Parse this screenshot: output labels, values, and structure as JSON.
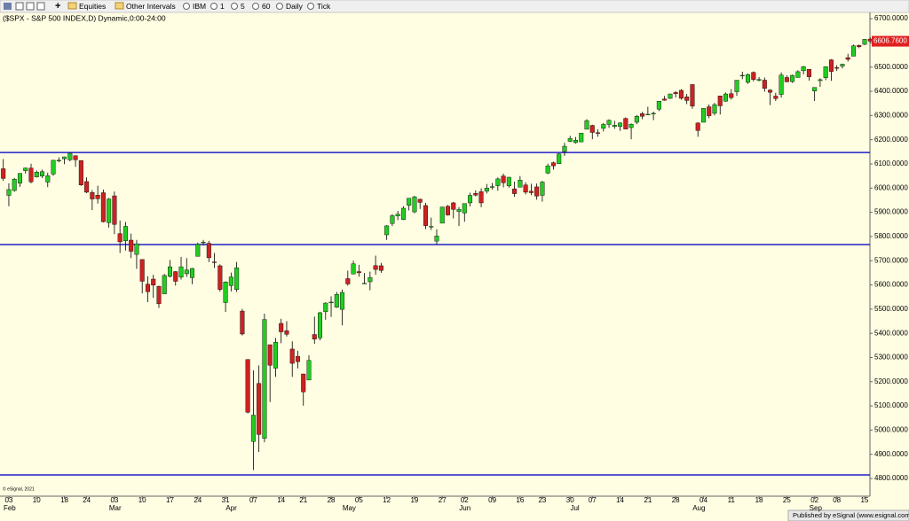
{
  "toolbar": {
    "items": [
      "Equities",
      "Other Intervals",
      "IBM",
      "1",
      "5",
      "60",
      "Daily",
      "Tick"
    ]
  },
  "footer": {
    "copyright": "© eSignal, 2021",
    "publisher": "Published by eSignal (www.esignal.com)"
  },
  "chart_data": {
    "type": "candlestick",
    "title": "($SPX - S&P 500 INDEX,D) Dynamic,0:00-24:00",
    "up_color": "#22cc22",
    "down_color": "#cc2222",
    "line_color": "#2020c8",
    "grid": false,
    "ylim": [
      4727,
      6726
    ],
    "yticks": [
      {
        "value": 4800,
        "label": "4800.0000"
      },
      {
        "value": 4900,
        "label": "4900.0000"
      },
      {
        "value": 5000,
        "label": "5000.0000"
      },
      {
        "value": 5100,
        "label": "5100.0000"
      },
      {
        "value": 5200,
        "label": "5200.0000"
      },
      {
        "value": 5300,
        "label": "5300.0000"
      },
      {
        "value": 5400,
        "label": "5400.0000"
      },
      {
        "value": 5500,
        "label": "5500.0000"
      },
      {
        "value": 5600,
        "label": "5600.0000"
      },
      {
        "value": 5700,
        "label": "5700.0000"
      },
      {
        "value": 5800,
        "label": "5800.0000"
      },
      {
        "value": 5900,
        "label": "5900.0000"
      },
      {
        "value": 6000,
        "label": "6000.0000"
      },
      {
        "value": 6100,
        "label": "6100.0000"
      },
      {
        "value": 6200,
        "label": "6200.0000"
      },
      {
        "value": 6300,
        "label": "6300.0000"
      },
      {
        "value": 6400,
        "label": "6400.0000"
      },
      {
        "value": 6500,
        "label": "6500.0000"
      },
      {
        "value": 6600,
        "label": "6600.0000"
      },
      {
        "value": 6700,
        "label": "6700.0000"
      }
    ],
    "hlines": [
      6147,
      5767,
      4815
    ],
    "last_price": {
      "value": 6606.76,
      "label": "6606.7600"
    },
    "categories": [
      null,
      "03",
      null,
      null,
      null,
      null,
      "10",
      null,
      null,
      null,
      null,
      "18",
      null,
      null,
      null,
      "24",
      null,
      null,
      null,
      null,
      "03",
      null,
      null,
      null,
      null,
      "10",
      null,
      null,
      null,
      null,
      "17",
      null,
      null,
      null,
      null,
      "24",
      null,
      null,
      null,
      null,
      "31",
      null,
      null,
      null,
      null,
      "07",
      null,
      null,
      null,
      null,
      "14",
      null,
      null,
      null,
      "21",
      null,
      null,
      null,
      null,
      "28",
      null,
      null,
      null,
      null,
      "05",
      null,
      null,
      null,
      null,
      "12",
      null,
      null,
      null,
      null,
      "19",
      null,
      null,
      null,
      null,
      "27",
      null,
      null,
      null,
      "02",
      null,
      null,
      null,
      null,
      "09",
      null,
      null,
      null,
      null,
      "16",
      null,
      null,
      null,
      "23",
      null,
      null,
      null,
      null,
      "30",
      null,
      null,
      null,
      "07",
      null,
      null,
      null,
      null,
      "14",
      null,
      null,
      null,
      null,
      "21",
      null,
      null,
      null,
      null,
      "28",
      null,
      null,
      null,
      null,
      "04",
      null,
      null,
      null,
      null,
      "11",
      null,
      null,
      null,
      null,
      "18",
      null,
      null,
      null,
      null,
      "25",
      null,
      null,
      null,
      null,
      "02",
      null,
      null,
      null,
      "08",
      null,
      null,
      null,
      null,
      "15",
      null
    ],
    "months": [
      null,
      "Feb",
      null,
      null,
      null,
      null,
      null,
      null,
      null,
      null,
      null,
      null,
      null,
      null,
      null,
      null,
      null,
      null,
      null,
      null,
      "Mar",
      null,
      null,
      null,
      null,
      null,
      null,
      null,
      null,
      null,
      null,
      null,
      null,
      null,
      null,
      null,
      null,
      null,
      null,
      null,
      null,
      "Apr",
      null,
      null,
      null,
      null,
      null,
      null,
      null,
      null,
      null,
      null,
      null,
      null,
      null,
      null,
      null,
      null,
      null,
      null,
      null,
      null,
      "May",
      null,
      null,
      null,
      null,
      null,
      null,
      null,
      null,
      null,
      null,
      null,
      null,
      null,
      null,
      null,
      null,
      null,
      null,
      null,
      null,
      "Jun",
      null,
      null,
      null,
      null,
      null,
      null,
      null,
      null,
      null,
      null,
      null,
      null,
      null,
      null,
      null,
      null,
      null,
      null,
      null,
      "Jul",
      null,
      null,
      null,
      null,
      null,
      null,
      null,
      null,
      null,
      null,
      null,
      null,
      null,
      null,
      null,
      null,
      null,
      null,
      null,
      null,
      null,
      "Aug",
      null,
      null,
      null,
      null,
      null,
      null,
      null,
      null,
      null,
      null,
      null,
      null,
      null,
      null,
      null,
      null,
      null,
      null,
      null,
      null,
      "Sep",
      null,
      null,
      null,
      null,
      null,
      null,
      null,
      null,
      null,
      null
    ],
    "ohlc": [
      [
        6080,
        6120,
        6030,
        6040
      ],
      [
        5970,
        6020,
        5925,
        5994
      ],
      [
        5990,
        6042,
        5985,
        6037
      ],
      [
        6020,
        6062,
        6005,
        6061
      ],
      [
        6072,
        6085,
        6060,
        6083
      ],
      [
        6083,
        6101,
        6020,
        6026
      ],
      [
        6046,
        6073,
        6044,
        6066
      ],
      [
        6050,
        6076,
        6042,
        6068
      ],
      [
        6025,
        6064,
        6004,
        6051
      ],
      [
        6058,
        6116,
        6051,
        6115
      ],
      [
        6115,
        6127,
        6107,
        6115
      ],
      [
        6121,
        6130,
        6099,
        6129
      ],
      [
        6117,
        6147,
        6111,
        6144
      ],
      [
        6134,
        6135,
        6088,
        6117
      ],
      [
        6114,
        6115,
        6009,
        6013
      ],
      [
        6027,
        6044,
        5979,
        5983
      ],
      [
        5982,
        5992,
        5909,
        5955
      ],
      [
        5971,
        6010,
        5936,
        5956
      ],
      [
        5981,
        5994,
        5858,
        5861
      ],
      [
        5857,
        5959,
        5837,
        5955
      ],
      [
        5968,
        5986,
        5810,
        5850
      ],
      [
        5812,
        5866,
        5732,
        5778
      ],
      [
        5782,
        5860,
        5742,
        5842
      ],
      [
        5785,
        5812,
        5711,
        5739
      ],
      [
        5726,
        5786,
        5666,
        5770
      ],
      [
        5705,
        5706,
        5565,
        5615
      ],
      [
        5603,
        5636,
        5529,
        5572
      ],
      [
        5624,
        5642,
        5547,
        5599
      ],
      [
        5594,
        5597,
        5505,
        5522
      ],
      [
        5563,
        5645,
        5563,
        5639
      ],
      [
        5635,
        5703,
        5631,
        5675
      ],
      [
        5655,
        5657,
        5597,
        5615
      ],
      [
        5632,
        5716,
        5622,
        5675
      ],
      [
        5646,
        5711,
        5633,
        5662
      ],
      [
        5630,
        5670,
        5603,
        5668
      ],
      [
        5718,
        5775,
        5718,
        5768
      ],
      [
        5775,
        5786,
        5763,
        5777
      ],
      [
        5772,
        5782,
        5694,
        5712
      ],
      [
        5695,
        5732,
        5670,
        5693
      ],
      [
        5679,
        5685,
        5572,
        5581
      ],
      [
        5527,
        5615,
        5488,
        5612
      ],
      [
        5597,
        5651,
        5573,
        5633
      ],
      [
        5581,
        5695,
        5571,
        5671
      ],
      [
        5492,
        5501,
        5391,
        5397
      ],
      [
        5292,
        5293,
        5069,
        5074
      ],
      [
        4953,
        5247,
        4835,
        5062
      ],
      [
        5193,
        5267,
        4910,
        4982
      ],
      [
        4966,
        5481,
        4950,
        5457
      ],
      [
        5353,
        5353,
        5116,
        5268
      ],
      [
        5256,
        5381,
        5220,
        5363
      ],
      [
        5441,
        5460,
        5359,
        5406
      ],
      [
        5411,
        5450,
        5387,
        5396
      ],
      [
        5335,
        5367,
        5220,
        5276
      ],
      [
        5305,
        5328,
        5255,
        5283
      ],
      [
        5232,
        5233,
        5101,
        5158
      ],
      [
        5207,
        5309,
        5207,
        5288
      ],
      [
        5395,
        5469,
        5356,
        5376
      ],
      [
        5381,
        5489,
        5371,
        5485
      ],
      [
        5489,
        5528,
        5456,
        5525
      ],
      [
        5529,
        5553,
        5468,
        5529
      ],
      [
        5508,
        5571,
        5505,
        5561
      ],
      [
        5499,
        5581,
        5433,
        5569
      ],
      [
        5626,
        5659,
        5597,
        5604
      ],
      [
        5645,
        5700,
        5645,
        5687
      ],
      [
        5655,
        5683,
        5634,
        5650
      ],
      [
        5606,
        5649,
        5604,
        5607
      ],
      [
        5613,
        5655,
        5578,
        5631
      ],
      [
        5680,
        5721,
        5642,
        5664
      ],
      [
        5679,
        5691,
        5650,
        5660
      ],
      [
        5807,
        5847,
        5786,
        5844
      ],
      [
        5854,
        5892,
        5843,
        5886
      ],
      [
        5885,
        5906,
        5868,
        5892
      ],
      [
        5870,
        5925,
        5868,
        5917
      ],
      [
        5929,
        5959,
        5908,
        5958
      ],
      [
        5902,
        5968,
        5896,
        5964
      ],
      [
        5954,
        5956,
        5914,
        5941
      ],
      [
        5928,
        5939,
        5831,
        5845
      ],
      [
        5841,
        5878,
        5827,
        5842
      ],
      [
        5781,
        5830,
        5767,
        5802
      ],
      [
        5855,
        5923,
        5855,
        5922
      ],
      [
        5925,
        5930,
        5886,
        5889
      ],
      [
        5939,
        5943,
        5875,
        5912
      ],
      [
        5903,
        5922,
        5843,
        5912
      ],
      [
        5897,
        5937,
        5861,
        5936
      ],
      [
        5939,
        5981,
        5924,
        5970
      ],
      [
        5978,
        5991,
        5966,
        5971
      ],
      [
        5985,
        5999,
        5921,
        5939
      ],
      [
        5987,
        6017,
        5978,
        6000
      ],
      [
        6004,
        6021,
        5994,
        6006
      ],
      [
        6010,
        6044,
        5989,
        6038
      ],
      [
        6050,
        6060,
        6003,
        6022
      ],
      [
        6009,
        6046,
        6002,
        6045
      ],
      [
        5997,
        6027,
        5964,
        5977
      ],
      [
        6004,
        6050,
        6004,
        6033
      ],
      [
        6013,
        6024,
        5974,
        5983
      ],
      [
        5987,
        6018,
        5971,
        5981
      ],
      [
        6005,
        6019,
        5952,
        5967
      ],
      [
        5970,
        6030,
        5944,
        6025
      ],
      [
        6062,
        6101,
        6058,
        6092
      ],
      [
        6105,
        6109,
        6076,
        6092
      ],
      [
        6101,
        6144,
        6101,
        6141
      ],
      [
        6151,
        6187,
        6133,
        6173
      ],
      [
        6193,
        6216,
        6190,
        6205
      ],
      [
        6188,
        6211,
        6184,
        6198
      ],
      [
        6191,
        6228,
        6190,
        6227
      ],
      [
        6243,
        6285,
        6243,
        6279
      ],
      [
        6259,
        6262,
        6202,
        6230
      ],
      [
        6229,
        6243,
        6212,
        6226
      ],
      [
        6247,
        6269,
        6234,
        6263
      ],
      [
        6263,
        6284,
        6249,
        6280
      ],
      [
        6255,
        6278,
        6245,
        6260
      ],
      [
        6255,
        6272,
        6237,
        6269
      ],
      [
        6288,
        6292,
        6243,
        6244
      ],
      [
        6250,
        6267,
        6202,
        6264
      ],
      [
        6272,
        6302,
        6264,
        6297
      ],
      [
        6308,
        6315,
        6285,
        6297
      ],
      [
        6304,
        6336,
        6303,
        6305
      ],
      [
        6306,
        6316,
        6281,
        6309
      ],
      [
        6326,
        6360,
        6318,
        6359
      ],
      [
        6368,
        6381,
        6361,
        6363
      ],
      [
        6371,
        6390,
        6368,
        6389
      ],
      [
        6395,
        6401,
        6375,
        6390
      ],
      [
        6404,
        6409,
        6365,
        6371
      ],
      [
        6377,
        6389,
        6347,
        6362
      ],
      [
        6428,
        6428,
        6328,
        6339
      ],
      [
        6269,
        6272,
        6212,
        6238
      ],
      [
        6272,
        6330,
        6272,
        6330
      ],
      [
        6336,
        6346,
        6289,
        6299
      ],
      [
        6309,
        6352,
        6301,
        6345
      ],
      [
        6381,
        6381,
        6304,
        6340
      ],
      [
        6359,
        6395,
        6357,
        6389
      ],
      [
        6390,
        6409,
        6366,
        6374
      ],
      [
        6398,
        6446,
        6381,
        6446
      ],
      [
        6466,
        6481,
        6450,
        6466
      ],
      [
        6437,
        6474,
        6431,
        6469
      ],
      [
        6478,
        6482,
        6441,
        6449
      ],
      [
        6445,
        6459,
        6441,
        6449
      ],
      [
        6446,
        6457,
        6398,
        6412
      ],
      [
        6405,
        6409,
        6343,
        6396
      ],
      [
        6380,
        6394,
        6360,
        6370
      ],
      [
        6387,
        6478,
        6374,
        6467
      ],
      [
        6457,
        6466,
        6438,
        6439
      ],
      [
        6440,
        6469,
        6435,
        6466
      ],
      [
        6457,
        6487,
        6457,
        6481
      ],
      [
        6485,
        6505,
        6470,
        6502
      ],
      [
        6491,
        6491,
        6444,
        6460
      ],
      [
        6401,
        6416,
        6360,
        6416
      ],
      [
        6444,
        6454,
        6418,
        6448
      ],
      [
        6456,
        6503,
        6446,
        6502
      ],
      [
        6530,
        6533,
        6443,
        6482
      ],
      [
        6498,
        6508,
        6484,
        6495
      ],
      [
        6504,
        6514,
        6494,
        6512
      ],
      [
        6539,
        6555,
        6523,
        6532
      ],
      [
        6545,
        6593,
        6545,
        6588
      ],
      [
        6590,
        6593,
        6578,
        6584
      ],
      [
        6594,
        6616,
        6591,
        6615
      ],
      [
        6616,
        6623,
        6602,
        6607
      ]
    ]
  }
}
